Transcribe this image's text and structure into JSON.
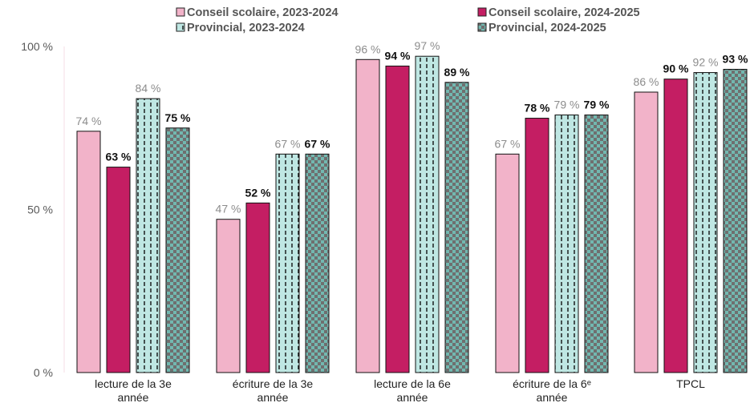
{
  "chart_data": {
    "type": "bar",
    "categories": [
      [
        "lecture de la 3e",
        "année"
      ],
      [
        "écriture  de la 3e",
        "année"
      ],
      [
        "lecture de la 6e",
        "année"
      ],
      [
        "écriture  de la 6ᵉ",
        "année"
      ],
      [
        "TPCL"
      ]
    ],
    "series": [
      {
        "name": "Conseil scolaire, 2023-2024",
        "values": [
          74,
          47,
          96,
          67,
          86
        ],
        "labels": [
          "74 %",
          "47 %",
          "96 %",
          "67 %",
          "86 %"
        ],
        "color": "#f2b3c9",
        "pattern": "solid",
        "label_style": "muted"
      },
      {
        "name": "Conseil scolaire, 2024-2025",
        "values": [
          63,
          52,
          94,
          78,
          90
        ],
        "labels": [
          "63 %",
          "52 %",
          "94 %",
          "78 %",
          "90 %"
        ],
        "color": "#c41e63",
        "pattern": "solid",
        "label_style": "bold"
      },
      {
        "name": "Provincial, 2023-2024",
        "values": [
          84,
          67,
          97,
          79,
          92
        ],
        "labels": [
          "84 %",
          "67 %",
          "97 %",
          "79 %",
          "92 %"
        ],
        "color": "#bfe7e3",
        "pattern": "dashed-vertical",
        "label_style": "muted"
      },
      {
        "name": "Provincial, 2024-2025",
        "values": [
          75,
          67,
          89,
          79,
          93
        ],
        "labels": [
          "75 %",
          "67 %",
          "89 %",
          "79 %",
          "93 %"
        ],
        "color": "#72b8b0",
        "pattern": "checker",
        "label_style": "bold"
      }
    ],
    "yticks": [
      {
        "value": 0,
        "label": "0 %"
      },
      {
        "value": 50,
        "label": "50 %"
      },
      {
        "value": 100,
        "label": "100 %"
      }
    ],
    "ylim": [
      0,
      100
    ],
    "grid": false,
    "legend_position": "top"
  }
}
